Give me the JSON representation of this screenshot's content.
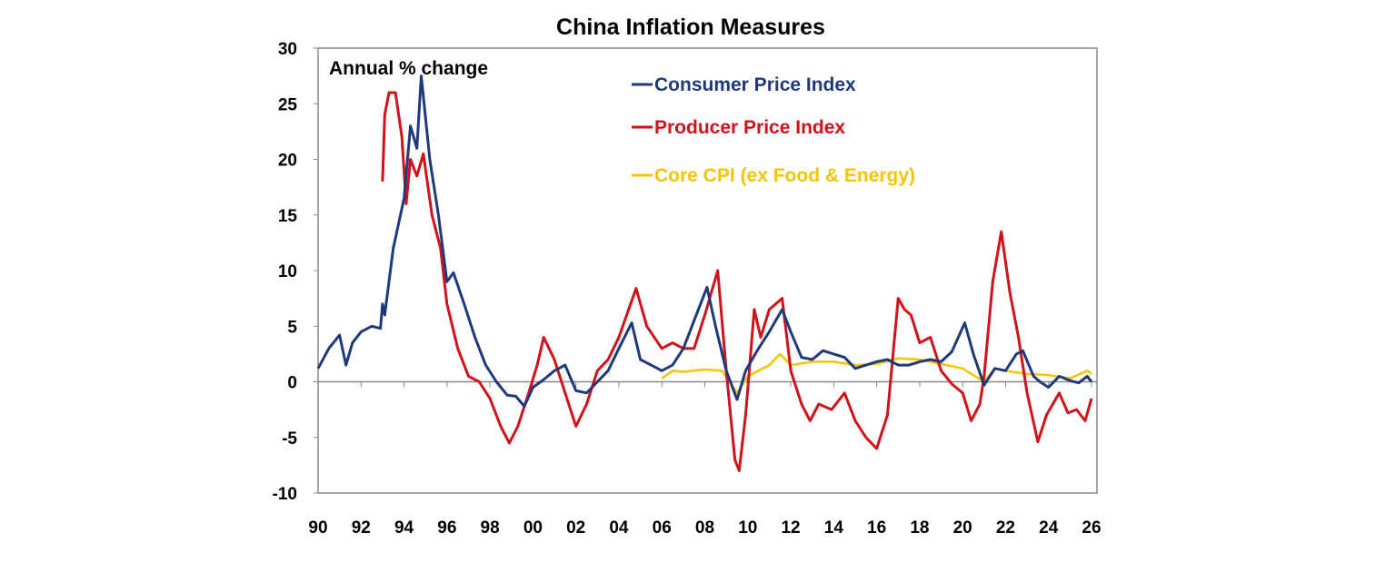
{
  "chart_data": {
    "type": "line",
    "title": "China Inflation Measures",
    "annotation": "Annual % change",
    "xlim": [
      1990,
      2026
    ],
    "ylim": [
      -10,
      30
    ],
    "x_tick_labels": [
      "90",
      "92",
      "94",
      "96",
      "98",
      "00",
      "02",
      "04",
      "06",
      "08",
      "10",
      "12",
      "14",
      "16",
      "18",
      "20",
      "22",
      "24",
      "26"
    ],
    "y_tick_labels": [
      "-10",
      "-5",
      "0",
      "5",
      "10",
      "15",
      "20",
      "25",
      "30"
    ],
    "grid": false,
    "legend_position": "top-right",
    "series": [
      {
        "name": "Consumer Price Index",
        "color": "#1f3a7a",
        "x": [
          1990.0,
          1990.5,
          1991.0,
          1991.3,
          1991.6,
          1992.0,
          1992.5,
          1992.9,
          1993.0,
          1993.1,
          1993.5,
          1994.0,
          1994.3,
          1994.6,
          1994.8,
          1995.2,
          1995.6,
          1996.0,
          1996.3,
          1996.8,
          1997.3,
          1997.8,
          1998.3,
          1998.8,
          1999.2,
          1999.6,
          2000.0,
          2000.5,
          2001.0,
          2001.5,
          2002.0,
          2002.5,
          2003.0,
          2003.5,
          2004.0,
          2004.6,
          2005.0,
          2005.5,
          2006.0,
          2006.5,
          2007.0,
          2007.5,
          2008.1,
          2008.5,
          2009.0,
          2009.5,
          2009.9,
          2010.5,
          2011.0,
          2011.6,
          2012.0,
          2012.5,
          2013.0,
          2013.5,
          2014.0,
          2014.5,
          2015.0,
          2015.5,
          2016.0,
          2016.5,
          2017.0,
          2017.5,
          2018.0,
          2018.5,
          2019.0,
          2019.5,
          2020.1,
          2020.5,
          2021.0,
          2021.5,
          2022.0,
          2022.5,
          2022.8,
          2023.3,
          2023.6,
          2024.0,
          2024.5,
          2025.0,
          2025.4,
          2025.8,
          2026.0
        ],
        "y": [
          1.2,
          3.0,
          4.2,
          1.5,
          3.5,
          4.5,
          5.0,
          4.8,
          7.0,
          6.0,
          12.0,
          16.5,
          23.0,
          21.0,
          27.5,
          20.0,
          15.0,
          9.0,
          9.8,
          7.0,
          4.0,
          1.5,
          0.0,
          -1.2,
          -1.3,
          -2.2,
          -0.5,
          0.2,
          1.0,
          1.5,
          -0.8,
          -1.0,
          0.0,
          1.0,
          3.0,
          5.3,
          2.0,
          1.5,
          1.0,
          1.5,
          3.0,
          5.5,
          8.5,
          5.0,
          1.0,
          -1.6,
          1.0,
          3.0,
          4.5,
          6.5,
          4.5,
          2.2,
          2.0,
          2.8,
          2.5,
          2.2,
          1.2,
          1.5,
          1.8,
          2.0,
          1.5,
          1.5,
          1.8,
          2.0,
          1.8,
          2.7,
          5.3,
          2.5,
          -0.3,
          1.2,
          1.0,
          2.5,
          2.8,
          0.5,
          0.0,
          -0.5,
          0.5,
          0.1,
          -0.1,
          0.5,
          0.0
        ]
      },
      {
        "name": "Producer Price Index",
        "color": "#d0121b",
        "x": [
          1993.0,
          1993.1,
          1993.3,
          1993.6,
          1993.9,
          1994.1,
          1994.3,
          1994.6,
          1994.9,
          1995.3,
          1995.7,
          1996.0,
          1996.5,
          1997.0,
          1997.5,
          1998.0,
          1998.5,
          1998.9,
          1999.3,
          1999.8,
          2000.2,
          2000.5,
          2001.0,
          2001.5,
          2002.0,
          2002.5,
          2003.0,
          2003.5,
          2004.0,
          2004.8,
          2005.3,
          2006.0,
          2006.5,
          2007.0,
          2007.5,
          2008.0,
          2008.6,
          2009.0,
          2009.4,
          2009.6,
          2009.9,
          2010.3,
          2010.6,
          2011.0,
          2011.6,
          2012.0,
          2012.5,
          2012.9,
          2013.3,
          2013.9,
          2014.5,
          2015.0,
          2015.5,
          2016.0,
          2016.5,
          2017.0,
          2017.3,
          2017.6,
          2018.0,
          2018.5,
          2019.0,
          2019.5,
          2020.0,
          2020.4,
          2020.8,
          2021.0,
          2021.4,
          2021.8,
          2022.2,
          2022.6,
          2023.0,
          2023.5,
          2023.9,
          2024.5,
          2024.9,
          2025.3,
          2025.7,
          2026.0
        ],
        "y": [
          18.0,
          24.0,
          26.0,
          26.0,
          22.0,
          16.0,
          20.0,
          18.5,
          20.5,
          15.0,
          12.0,
          7.0,
          3.0,
          0.5,
          0.0,
          -1.5,
          -4.0,
          -5.5,
          -4.0,
          -1.0,
          1.5,
          4.0,
          2.0,
          -1.0,
          -4.0,
          -2.0,
          1.0,
          2.0,
          4.0,
          8.4,
          5.0,
          3.0,
          3.5,
          3.0,
          3.0,
          6.0,
          10.0,
          1.0,
          -7.0,
          -8.0,
          -3.0,
          6.5,
          4.0,
          6.5,
          7.5,
          1.0,
          -2.0,
          -3.5,
          -2.0,
          -2.5,
          -1.0,
          -3.5,
          -5.0,
          -6.0,
          -3.0,
          7.5,
          6.5,
          6.0,
          3.5,
          4.0,
          1.0,
          -0.2,
          -1.0,
          -3.5,
          -2.0,
          0.5,
          9.0,
          13.5,
          8.0,
          4.0,
          -1.0,
          -5.4,
          -3.0,
          -1.0,
          -2.8,
          -2.5,
          -3.5,
          -1.5
        ]
      },
      {
        "name": "Core CPI (ex Food & Energy)",
        "color": "#f5c400",
        "x": [
          2006.0,
          2006.5,
          2007.0,
          2008.0,
          2008.8,
          2009.5,
          2010.0,
          2011.0,
          2011.5,
          2012.0,
          2013.0,
          2014.0,
          2015.0,
          2016.0,
          2017.0,
          2018.0,
          2019.0,
          2020.0,
          2021.0,
          2021.5,
          2022.0,
          2023.0,
          2024.0,
          2025.0,
          2025.8,
          2026.0
        ],
        "y": [
          0.3,
          1.0,
          0.9,
          1.1,
          1.0,
          -1.0,
          0.5,
          1.5,
          2.5,
          1.5,
          1.8,
          1.8,
          1.5,
          1.6,
          2.1,
          2.0,
          1.6,
          1.2,
          0.0,
          1.2,
          1.0,
          0.7,
          0.6,
          0.3,
          1.0,
          0.7
        ]
      }
    ]
  }
}
